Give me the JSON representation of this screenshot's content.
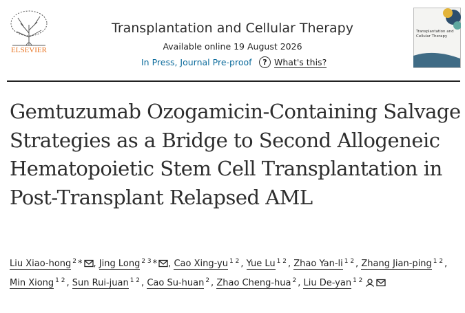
{
  "header": {
    "publisher": "ELSEVIER",
    "journal": "Transplantation and Cellular Therapy",
    "available": "Available online 19 August 2026",
    "status": "In Press, Journal Pre-proof",
    "help_icon": "?",
    "help": "What's this?",
    "cover_title": "Transplantation and Cellular Therapy"
  },
  "article": {
    "title": "Gemtuzumab Ozogamicin-Containing Salvage Strategies as a Bridge to Second Allogeneic Hematopoietic Stem Cell Transplantation in Post-Transplant Relapsed AML",
    "separator": ",",
    "authors": [
      {
        "name": "Liu Xiao-hong",
        "sup": "2",
        "mark": "*",
        "email": true
      },
      {
        "name": "Jing Long",
        "sup": "2 3",
        "mark": "*",
        "email": true
      },
      {
        "name": "Cao Xing-yu",
        "sup": "1 2"
      },
      {
        "name": "Yue Lu",
        "sup": "1 2"
      },
      {
        "name": "Zhao Yan-li",
        "sup": "1 2"
      },
      {
        "name": "Zhang Jian-ping",
        "sup": "1 2"
      },
      {
        "name": "Min Xiong",
        "sup": "1 2"
      },
      {
        "name": "Sun Rui-juan",
        "sup": "1 2"
      },
      {
        "name": "Cao Su-huan",
        "sup": "2"
      },
      {
        "name": "Zhao Cheng-hua",
        "sup": "2"
      },
      {
        "name": "Liu De-yan",
        "sup": "1 2",
        "person": true,
        "email": true
      }
    ]
  }
}
